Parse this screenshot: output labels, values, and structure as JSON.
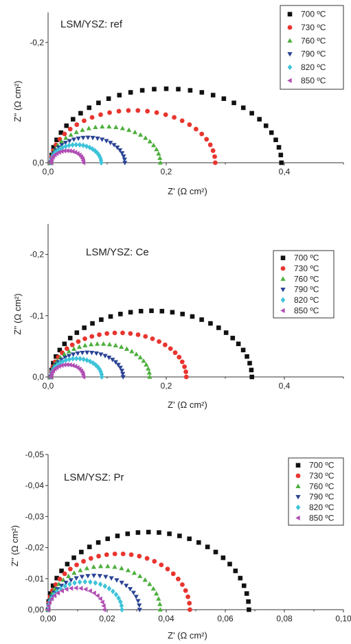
{
  "colors": {
    "700": "#111111",
    "730": "#e8352f",
    "760": "#4caf3c",
    "790": "#2a4394",
    "820": "#3fc3d9",
    "850": "#b04fb3"
  },
  "chart_data": [
    {
      "type": "scatter",
      "title": "LSM/YSZ: ref",
      "xlabel": "Z' (Ω cm²)",
      "ylabel": "Z'' (Ω cm²)",
      "xlim": [
        0,
        0.5
      ],
      "ylim": [
        0,
        -0.25
      ],
      "xticks": [
        0,
        0.2,
        0.4
      ],
      "xtick_labels": [
        "0,0",
        "0,2",
        "0,4"
      ],
      "yticks": [
        0,
        -0.2
      ],
      "ytick_labels": [
        "0,0",
        "-0,2"
      ],
      "legend_position": "top-right",
      "series": [
        {
          "name": "700 ºC",
          "color_key": "700",
          "marker": "square",
          "xmin": 0.005,
          "xmax": 0.395,
          "ymax": 0.123
        },
        {
          "name": "730 ºC",
          "color_key": "730",
          "marker": "circle",
          "xmin": 0.005,
          "xmax": 0.283,
          "ymax": 0.087
        },
        {
          "name": "760 ºC",
          "color_key": "760",
          "marker": "triangle-up",
          "xmin": 0.005,
          "xmax": 0.19,
          "ymax": 0.06
        },
        {
          "name": "790 ºC",
          "color_key": "790",
          "marker": "triangle-down",
          "xmin": 0.005,
          "xmax": 0.13,
          "ymax": 0.042
        },
        {
          "name": "820 ºC",
          "color_key": "820",
          "marker": "diamond",
          "xmin": 0.005,
          "xmax": 0.09,
          "ymax": 0.03
        },
        {
          "name": "850 ºC",
          "color_key": "850",
          "marker": "triangle-left",
          "xmin": 0.005,
          "xmax": 0.06,
          "ymax": 0.02
        }
      ]
    },
    {
      "type": "scatter",
      "title": "LSM/YSZ: Ce",
      "xlabel": "Z' (Ω cm²)",
      "ylabel": "Z'' (Ω cm²)",
      "xlim": [
        0,
        0.5
      ],
      "ylim": [
        0,
        -0.25
      ],
      "xticks": [
        0,
        0.2,
        0.4
      ],
      "xtick_labels": [
        "0,0",
        "0,2",
        "0,4"
      ],
      "yticks": [
        0,
        -0.1,
        -0.2
      ],
      "ytick_labels": [
        "0,0",
        "-0,1",
        "-0,2"
      ],
      "legend_position": "top-right",
      "series": [
        {
          "name": "700 ºC",
          "color_key": "700",
          "marker": "square",
          "xmin": 0.005,
          "xmax": 0.345,
          "ymax": 0.108
        },
        {
          "name": "730 ºC",
          "color_key": "730",
          "marker": "circle",
          "xmin": 0.005,
          "xmax": 0.234,
          "ymax": 0.072
        },
        {
          "name": "760 ºC",
          "color_key": "760",
          "marker": "triangle-up",
          "xmin": 0.005,
          "xmax": 0.172,
          "ymax": 0.054
        },
        {
          "name": "790 ºC",
          "color_key": "790",
          "marker": "triangle-down",
          "xmin": 0.005,
          "xmax": 0.127,
          "ymax": 0.04
        },
        {
          "name": "820 ºC",
          "color_key": "820",
          "marker": "diamond",
          "xmin": 0.005,
          "xmax": 0.091,
          "ymax": 0.03
        },
        {
          "name": "850 ºC",
          "color_key": "850",
          "marker": "triangle-left",
          "xmin": 0.005,
          "xmax": 0.06,
          "ymax": 0.02
        }
      ]
    },
    {
      "type": "scatter",
      "title": "LSM/YSZ: Pr",
      "xlabel": "Z' (Ω cm²)",
      "ylabel": "Z'' (Ω cm²)",
      "xlim": [
        0,
        0.1
      ],
      "ylim": [
        0,
        -0.05
      ],
      "xticks": [
        0,
        0.02,
        0.04,
        0.06,
        0.08,
        0.1
      ],
      "xtick_labels": [
        "0,00",
        "0,02",
        "0,04",
        "0,06",
        "0,08",
        "0,10"
      ],
      "yticks": [
        0,
        -0.01,
        -0.02,
        -0.03,
        -0.04,
        -0.05
      ],
      "ytick_labels": [
        "0,00",
        "-0,01",
        "-0,02",
        "-0,03",
        "-0,04",
        "-0,05"
      ],
      "legend_position": "top-right",
      "series": [
        {
          "name": "700 ºC",
          "color_key": "700",
          "marker": "square",
          "xmin": 0.0,
          "xmax": 0.068,
          "ymax": 0.025
        },
        {
          "name": "730 ºC",
          "color_key": "730",
          "marker": "circle",
          "xmin": 0.0,
          "xmax": 0.048,
          "ymax": 0.018
        },
        {
          "name": "760 ºC",
          "color_key": "760",
          "marker": "triangle-up",
          "xmin": 0.0,
          "xmax": 0.038,
          "ymax": 0.014
        },
        {
          "name": "790 ºC",
          "color_key": "790",
          "marker": "triangle-down",
          "xmin": 0.0,
          "xmax": 0.031,
          "ymax": 0.011
        },
        {
          "name": "820 ºC",
          "color_key": "820",
          "marker": "diamond",
          "xmin": 0.0,
          "xmax": 0.025,
          "ymax": 0.009
        },
        {
          "name": "850 ºC",
          "color_key": "850",
          "marker": "triangle-left",
          "xmin": 0.0,
          "xmax": 0.019,
          "ymax": 0.007
        }
      ]
    }
  ]
}
